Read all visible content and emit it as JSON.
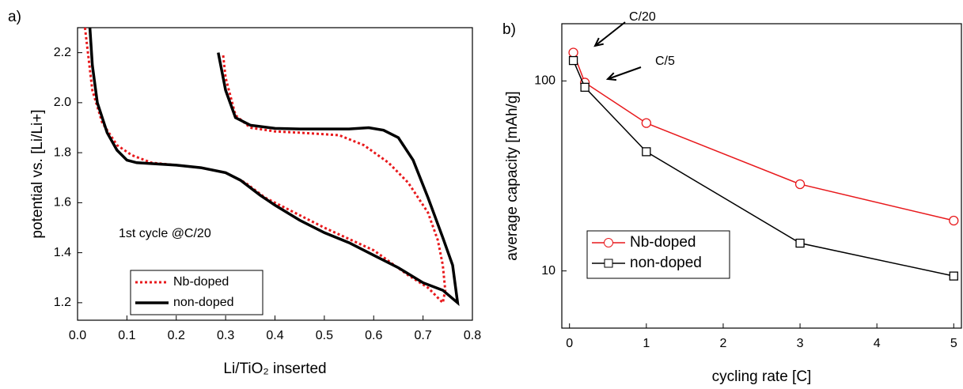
{
  "chart_data": [
    {
      "type": "line",
      "panel": "a)",
      "xlabel": "Li/TiO₂ inserted",
      "ylabel": "potential vs. [Li/Li+]",
      "xlim": [
        0,
        0.8
      ],
      "ylim": [
        1.13,
        2.3
      ],
      "xticks": [
        {
          "value": 0,
          "label": "0.0"
        },
        0.1,
        0.2,
        0.3,
        0.4,
        0.5,
        0.6,
        0.7,
        0.8
      ],
      "yticks": [
        1.2,
        1.4,
        1.6,
        1.8,
        {
          "value": 2,
          "label": "2.0"
        },
        2.2
      ],
      "annotations": [
        "1st cycle @C/20"
      ],
      "legend": "lower left",
      "series": [
        {
          "name": "Nb-doped",
          "color": "#e8191c",
          "style": "dotted",
          "x": [
            0.015,
            0.03,
            0.05,
            0.08,
            0.11,
            0.15,
            0.2,
            0.25,
            0.3,
            0.34,
            0.38,
            0.42,
            0.5,
            0.6,
            0.67,
            0.71,
            0.74,
            0.745,
            0.74,
            0.73,
            0.71,
            0.67,
            0.63,
            0.58,
            0.53,
            0.45,
            0.4,
            0.35,
            0.32,
            0.3,
            0.295
          ],
          "values": [
            2.3,
            2.05,
            1.92,
            1.83,
            1.79,
            1.76,
            1.75,
            1.74,
            1.72,
            1.68,
            1.62,
            1.58,
            1.5,
            1.41,
            1.31,
            1.26,
            1.2,
            1.25,
            1.35,
            1.45,
            1.56,
            1.68,
            1.76,
            1.83,
            1.87,
            1.88,
            1.885,
            1.9,
            1.95,
            2.1,
            2.19
          ]
        },
        {
          "name": "non-doped",
          "color": "#000000",
          "style": "solid",
          "x": [
            0.025,
            0.03,
            0.04,
            0.06,
            0.08,
            0.1,
            0.12,
            0.2,
            0.25,
            0.3,
            0.33,
            0.37,
            0.4,
            0.45,
            0.5,
            0.55,
            0.6,
            0.65,
            0.7,
            0.74,
            0.77,
            0.76,
            0.74,
            0.71,
            0.68,
            0.65,
            0.62,
            0.59,
            0.55,
            0.5,
            0.45,
            0.4,
            0.35,
            0.32,
            0.3,
            0.285
          ],
          "values": [
            2.3,
            2.15,
            2.0,
            1.88,
            1.81,
            1.77,
            1.76,
            1.75,
            1.74,
            1.72,
            1.69,
            1.63,
            1.59,
            1.53,
            1.48,
            1.44,
            1.39,
            1.34,
            1.28,
            1.25,
            1.2,
            1.35,
            1.46,
            1.62,
            1.77,
            1.86,
            1.89,
            1.9,
            1.895,
            1.895,
            1.895,
            1.897,
            1.91,
            1.94,
            2.05,
            2.2
          ]
        }
      ]
    },
    {
      "type": "line",
      "panel": "b)",
      "xlabel": "cycling rate [C]",
      "ylabel": "average capacity [mAh/g]",
      "yscale": "log",
      "xlim": [
        -0.1,
        5.1
      ],
      "ylim": [
        5,
        200
      ],
      "xticks": [
        0,
        1,
        2,
        3,
        4,
        5
      ],
      "yticks": [
        10,
        100
      ],
      "annotations": [
        "C/20",
        "C/5"
      ],
      "legend": "center left",
      "x": [
        0.05,
        0.2,
        1,
        3,
        5
      ],
      "series": [
        {
          "name": "Nb-doped",
          "color": "#e8191c",
          "marker": "circle",
          "values": [
            141,
            98,
            60,
            28.6,
            18.4
          ]
        },
        {
          "name": "non-doped",
          "color": "#000000",
          "marker": "square",
          "values": [
            128,
            92.6,
            42.4,
            14,
            9.4
          ]
        }
      ]
    }
  ]
}
